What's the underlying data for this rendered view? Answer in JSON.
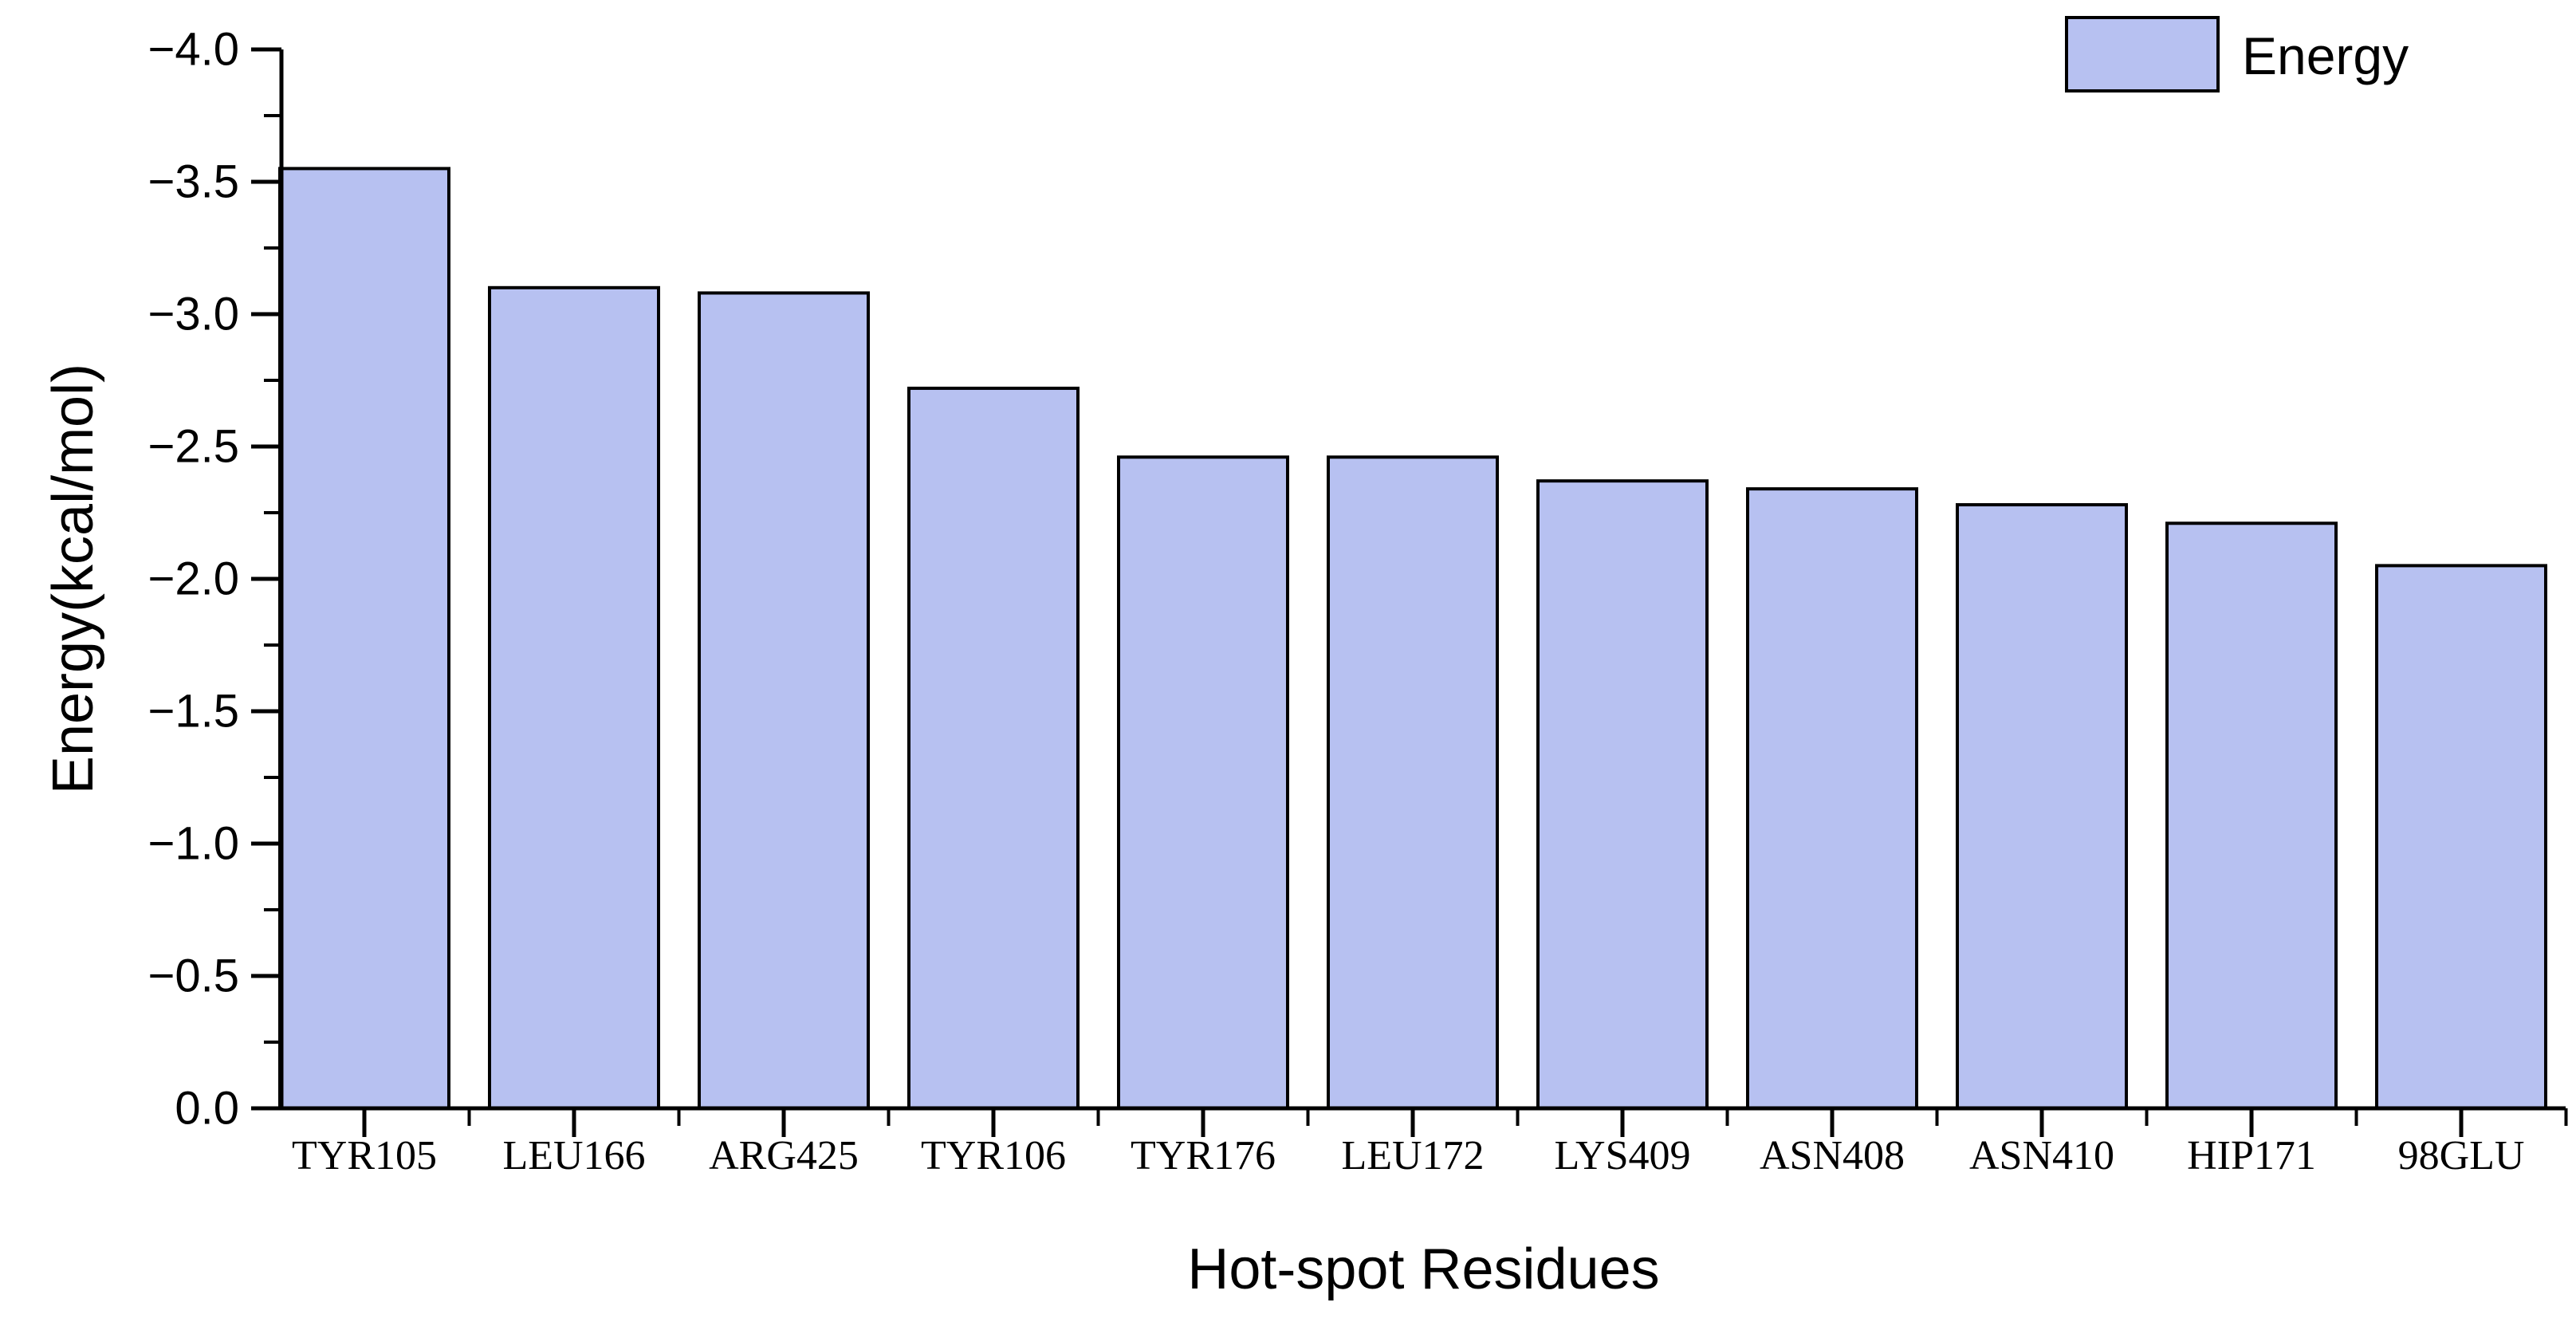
{
  "chart_data": {
    "type": "bar",
    "title": "",
    "categories": [
      "TYR105",
      "LEU166",
      "ARG425",
      "TYR106",
      "TYR176",
      "LEU172",
      "LYS409",
      "ASN408",
      "ASN410",
      "HIP171",
      "98GLU"
    ],
    "series": [
      {
        "name": "Energy",
        "values": [
          -3.55,
          -3.1,
          -3.08,
          -2.72,
          -2.46,
          -2.46,
          -2.37,
          -2.34,
          -2.28,
          -2.21,
          -2.05
        ]
      }
    ],
    "xlabel": "Hot-spot Residues",
    "ylabel": "Energy(kcal/mol)",
    "ylim": [
      -4.0,
      0.0
    ],
    "y_axis_direction": "inverted (−4.0 at top, 0.0 at bottom)",
    "y_major_tick_step": 0.5,
    "y_minor_tick_step": 0.25,
    "y_tick_labels": [
      "−4.0",
      "−3.5",
      "−3.0",
      "−2.5",
      "−2.0",
      "−1.5",
      "−1.0",
      "−0.5",
      "0.0"
    ],
    "grid": false,
    "legend": {
      "label": "Energy",
      "position": "top-right"
    },
    "colors": {
      "bar_fill": "#b7c1f1",
      "bar_border": "#000000",
      "axis": "#000000",
      "text": "#000000"
    }
  }
}
